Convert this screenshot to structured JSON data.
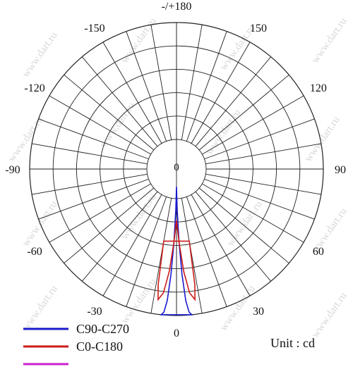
{
  "chart_data": {
    "type": "polar",
    "unit_label": "Unit : cd",
    "angle_labels": [
      {
        "angle": 180,
        "text": "-/+180"
      },
      {
        "angle": 150,
        "text": "150"
      },
      {
        "angle": 120,
        "text": "120"
      },
      {
        "angle": 90,
        "text": "90"
      },
      {
        "angle": 60,
        "text": "60"
      },
      {
        "angle": 30,
        "text": "30"
      },
      {
        "angle": 0,
        "text": "0"
      },
      {
        "angle": -30,
        "text": "-30"
      },
      {
        "angle": -60,
        "text": "-60"
      },
      {
        "angle": -90,
        "text": "-90"
      },
      {
        "angle": -120,
        "text": "-120"
      },
      {
        "angle": -150,
        "text": "-150"
      }
    ],
    "center_label": "0",
    "radial_rings": 5,
    "spoke_step_deg": 10,
    "grid": true,
    "series": [
      {
        "name": "C90-C270",
        "color": "#1a1acc",
        "points": [
          [
            -3,
            1.0
          ],
          [
            -2.5,
            0.98
          ],
          [
            -2,
            0.9
          ],
          [
            -1.5,
            0.72
          ],
          [
            -1,
            0.5
          ],
          [
            -0.5,
            0.28
          ],
          [
            0,
            0.12
          ],
          [
            0.5,
            0.28
          ],
          [
            1,
            0.5
          ],
          [
            1.5,
            0.72
          ],
          [
            2,
            0.9
          ],
          [
            2.5,
            0.98
          ],
          [
            3,
            1.0
          ]
        ]
      },
      {
        "name": "C0-C180",
        "color": "#cc1a1a",
        "points": [
          [
            -5,
            0.5
          ],
          [
            -4.5,
            0.8
          ],
          [
            -4,
            0.9
          ],
          [
            -3,
            0.85
          ],
          [
            -2,
            0.7
          ],
          [
            -1,
            0.5
          ],
          [
            0,
            0.35
          ],
          [
            1,
            0.5
          ],
          [
            2,
            0.7
          ],
          [
            3,
            0.85
          ],
          [
            4,
            0.9
          ],
          [
            4.5,
            0.8
          ],
          [
            5,
            0.5
          ]
        ]
      },
      {
        "name": "",
        "color": "#cc22cc",
        "points": []
      }
    ],
    "legend_position": "bottom-left"
  },
  "watermark": "www.dart.ru"
}
